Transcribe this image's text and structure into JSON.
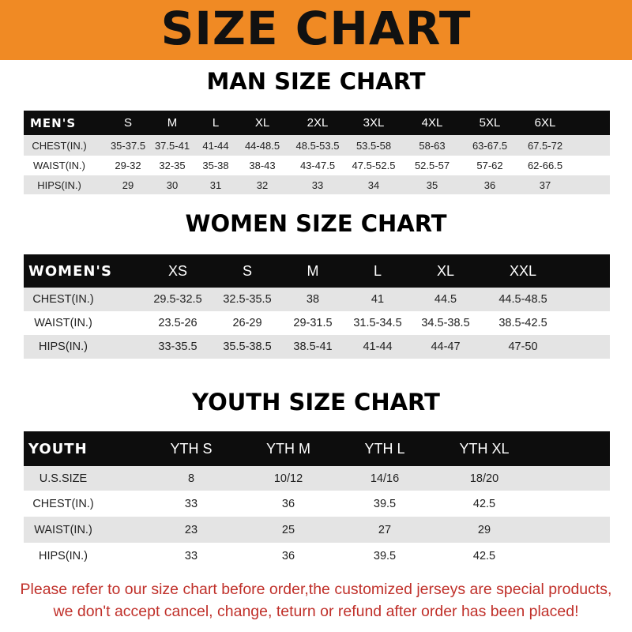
{
  "title": "SIZE CHART",
  "colors": {
    "banner": "#f08a24",
    "header_row": "#0d0d0d",
    "note": "#c0302a"
  },
  "men": {
    "title": "MAN SIZE CHART",
    "headers": [
      "MEN'S",
      "S",
      "M",
      "L",
      "XL",
      "2XL",
      "3XL",
      "4XL",
      "5XL",
      "6XL"
    ],
    "rows": [
      [
        "CHEST(IN.)",
        "35-37.5",
        "37.5-41",
        "41-44",
        "44-48.5",
        "48.5-53.5",
        "53.5-58",
        "58-63",
        "63-67.5",
        "67.5-72"
      ],
      [
        "WAIST(IN.)",
        "29-32",
        "32-35",
        "35-38",
        "38-43",
        "43-47.5",
        "47.5-52.5",
        "52.5-57",
        "57-62",
        "62-66.5"
      ],
      [
        "HIPS(IN.)",
        "29",
        "30",
        "31",
        "32",
        "33",
        "34",
        "35",
        "36",
        "37"
      ]
    ]
  },
  "women": {
    "title": "WOMEN SIZE CHART",
    "headers": [
      "WOMEN'S",
      "XS",
      "S",
      "M",
      "L",
      "XL",
      "XXL"
    ],
    "rows": [
      [
        "CHEST(IN.)",
        "29.5-32.5",
        "32.5-35.5",
        "38",
        "41",
        "44.5",
        "44.5-48.5"
      ],
      [
        "WAIST(IN.)",
        "23.5-26",
        "26-29",
        "29-31.5",
        "31.5-34.5",
        "34.5-38.5",
        "38.5-42.5"
      ],
      [
        "HIPS(IN.)",
        "33-35.5",
        "35.5-38.5",
        "38.5-41",
        "41-44",
        "44-47",
        "47-50"
      ]
    ]
  },
  "youth": {
    "title": "YOUTH SIZE CHART",
    "headers": [
      "YOUTH",
      "YTH S",
      "YTH M",
      "YTH L",
      "YTH XL"
    ],
    "rows": [
      [
        "U.S.SIZE",
        "8",
        "10/12",
        "14/16",
        "18/20"
      ],
      [
        "CHEST(IN.)",
        "33",
        "36",
        "39.5",
        "42.5"
      ],
      [
        "WAIST(IN.)",
        "23",
        "25",
        "27",
        "29"
      ],
      [
        "HIPS(IN.)",
        "33",
        "36",
        "39.5",
        "42.5"
      ]
    ]
  },
  "note": {
    "line1": "Please refer to our size chart before order,the customized jerseys are special products,",
    "line2": "we don't accept cancel, change, teturn or refund after order has been placed!"
  }
}
